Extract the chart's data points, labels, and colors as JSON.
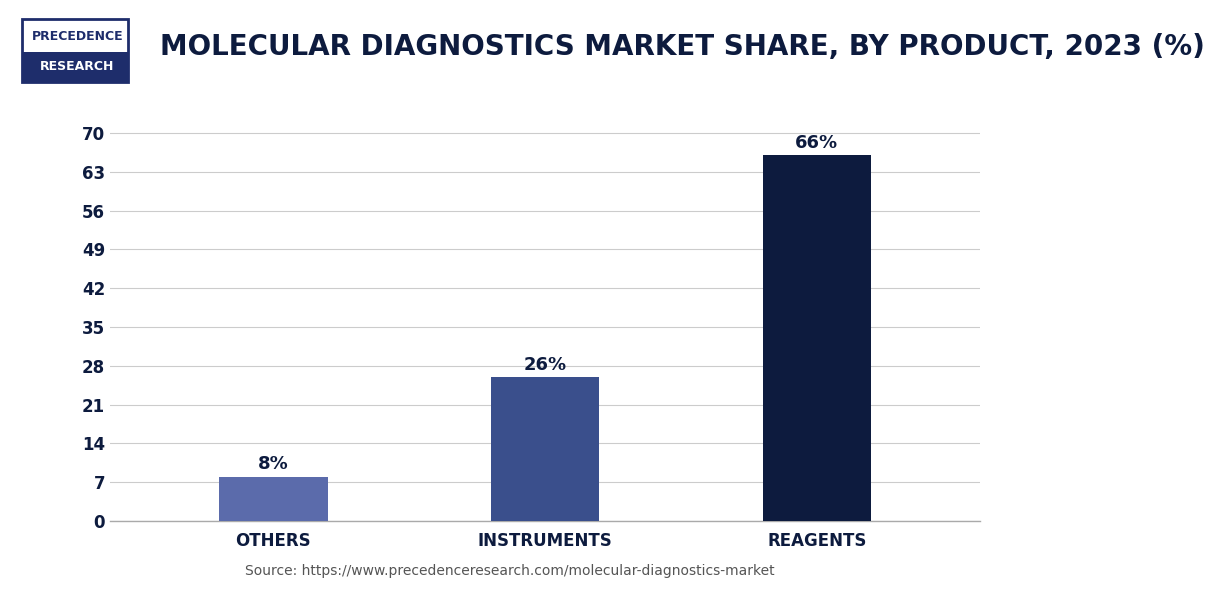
{
  "title": "MOLECULAR DIAGNOSTICS MARKET SHARE, BY PRODUCT, 2023 (%)",
  "categories": [
    "OTHERS",
    "INSTRUMENTS",
    "REAGENTS"
  ],
  "values": [
    8,
    26,
    66
  ],
  "labels": [
    "8%",
    "26%",
    "66%"
  ],
  "bar_colors": [
    "#5b6bab",
    "#3a4f8c",
    "#0d1b3e"
  ],
  "ylim": [
    0,
    74
  ],
  "yticks": [
    0,
    7,
    14,
    21,
    28,
    35,
    42,
    49,
    56,
    63,
    70
  ],
  "title_color": "#0d1b3e",
  "axis_color": "#0d1b3e",
  "grid_color": "#cccccc",
  "background_color": "#ffffff",
  "source_text": "Source: https://www.precedenceresearch.com/molecular-diagnostics-market",
  "logo_text1": "PRECEDENCE",
  "logo_text2": "RESEARCH",
  "logo_box_color": "#1e2d6b",
  "logo_text_color": "#1e2d6b",
  "separator_color": "#2d3875",
  "bar_label_fontsize": 13,
  "title_fontsize": 20,
  "tick_fontsize": 12,
  "xlabel_fontsize": 12,
  "source_fontsize": 10
}
